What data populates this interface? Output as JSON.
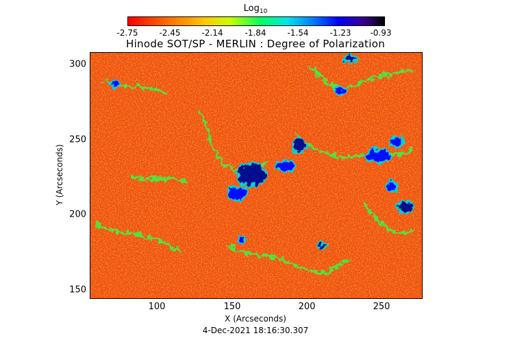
{
  "colorbar": {
    "label": "Log",
    "label_sub": "10",
    "ticks": [
      "-2.75",
      "-2.45",
      "-2.14",
      "-1.84",
      "-1.54",
      "-1.23",
      "-0.93"
    ]
  },
  "title": "Hinode SOT/SP - MERLIN : Degree of Polarization",
  "axes": {
    "xlabel": "X (Arcseconds)",
    "ylabel": "Y (Arcseconds)",
    "x_ticks": [
      "100",
      "150",
      "200",
      "250"
    ],
    "y_ticks": [
      "300",
      "250",
      "200",
      "150"
    ],
    "x_range": [
      54,
      276
    ],
    "y_range": [
      143,
      307
    ]
  },
  "timestamp": "4-Dec-2021 18:16:30.307",
  "colors": {
    "background": "#ee5a1e",
    "red": "#ff2a00",
    "orange": "#ff8a00",
    "yellow": "#ffd200",
    "green": "#55e040",
    "cyan": "#00d2d2",
    "blue": "#0010ff",
    "navy": "#000a8c"
  }
}
